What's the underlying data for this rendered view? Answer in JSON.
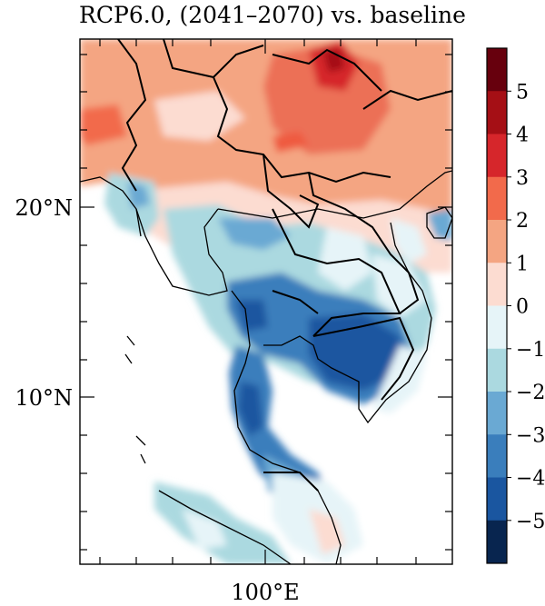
{
  "title": "RCP6.0, (2041–2070) vs. baseline",
  "map": {
    "lat_ticks": [
      "20°N",
      "10°N"
    ],
    "lon_ticks": [
      "100°E"
    ]
  },
  "colorbar": {
    "labels": [
      "5",
      "4",
      "3",
      "2",
      "1",
      "0",
      "−1",
      "−2",
      "−3",
      "−4",
      "−5"
    ],
    "colors": [
      "#67000d",
      "#a50f15",
      "#d6262b",
      "#f26a4b",
      "#f4a582",
      "#fcdcd1",
      "#e6f4f8",
      "#abd9e0",
      "#6aa9d3",
      "#3a7ebc",
      "#1a56a0",
      "#08254f"
    ]
  }
}
